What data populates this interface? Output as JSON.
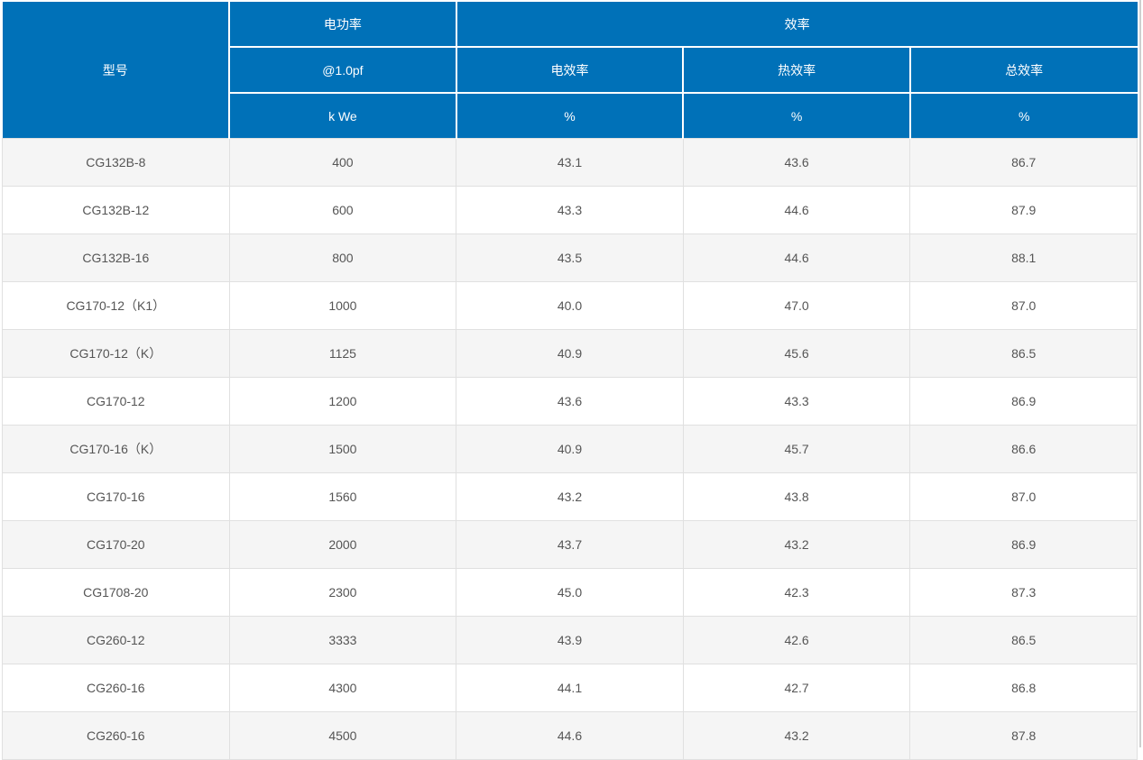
{
  "header": {
    "model": "型号",
    "power_title": "电功率",
    "power_sub": "@1.0pf",
    "power_unit": "k We",
    "efficiency_title": "效率",
    "eff_electrical": "电效率",
    "eff_thermal": "热效率",
    "eff_total": "总效率",
    "unit_percent": "%"
  },
  "rows": [
    {
      "model": "CG132B-8",
      "power": "400",
      "electrical_eff": "43.1",
      "thermal_eff": "43.6",
      "total_eff": "86.7"
    },
    {
      "model": "CG132B-12",
      "power": "600",
      "electrical_eff": "43.3",
      "thermal_eff": "44.6",
      "total_eff": "87.9"
    },
    {
      "model": "CG132B-16",
      "power": "800",
      "electrical_eff": "43.5",
      "thermal_eff": "44.6",
      "total_eff": "88.1"
    },
    {
      "model": "CG170-12（K1）",
      "power": "1000",
      "electrical_eff": "40.0",
      "thermal_eff": "47.0",
      "total_eff": "87.0"
    },
    {
      "model": "CG170-12（K）",
      "power": "1125",
      "electrical_eff": "40.9",
      "thermal_eff": "45.6",
      "total_eff": "86.5"
    },
    {
      "model": "CG170-12",
      "power": "1200",
      "electrical_eff": "43.6",
      "thermal_eff": "43.3",
      "total_eff": "86.9"
    },
    {
      "model": "CG170-16（K）",
      "power": "1500",
      "electrical_eff": "40.9",
      "thermal_eff": "45.7",
      "total_eff": "86.6"
    },
    {
      "model": "CG170-16",
      "power": "1560",
      "electrical_eff": "43.2",
      "thermal_eff": "43.8",
      "total_eff": "87.0"
    },
    {
      "model": "CG170-20",
      "power": "2000",
      "electrical_eff": "43.7",
      "thermal_eff": "43.2",
      "total_eff": "86.9"
    },
    {
      "model": "CG1708-20",
      "power": "2300",
      "electrical_eff": "45.0",
      "thermal_eff": "42.3",
      "total_eff": "87.3"
    },
    {
      "model": "CG260-12",
      "power": "3333",
      "electrical_eff": "43.9",
      "thermal_eff": "42.6",
      "total_eff": "86.5"
    },
    {
      "model": "CG260-16",
      "power": "4300",
      "electrical_eff": "44.1",
      "thermal_eff": "42.7",
      "total_eff": "86.8"
    },
    {
      "model": "CG260-16",
      "power": "4500",
      "electrical_eff": "44.6",
      "thermal_eff": "43.2",
      "total_eff": "87.8"
    }
  ],
  "colors": {
    "header_bg": "#0071b8",
    "header_text": "#ffffff",
    "header_border": "#ffffff",
    "row_odd_bg": "#f5f5f5",
    "row_even_bg": "#ffffff",
    "cell_border": "#e0e0e0",
    "body_text": "#555555",
    "right_edge_line": "#cfcfcf"
  }
}
